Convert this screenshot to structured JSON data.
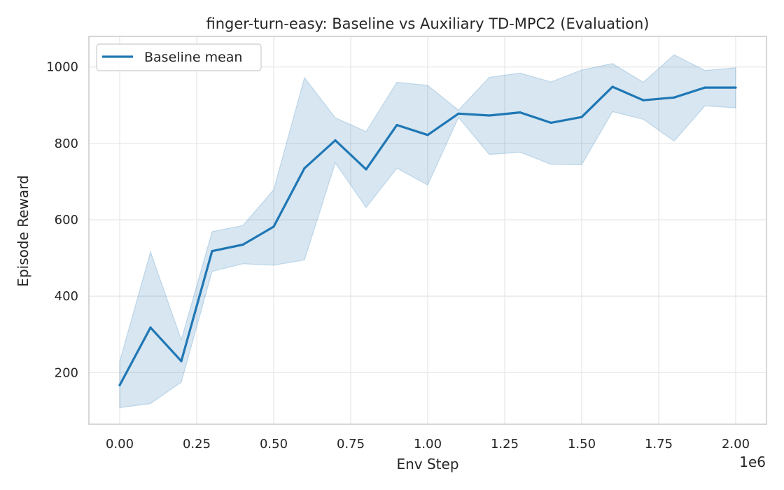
{
  "chart_data": {
    "type": "line",
    "title": "finger-turn-easy: Baseline vs Auxiliary TD-MPC2 (Evaluation)",
    "xlabel": "Env Step",
    "ylabel": "Episode Reward",
    "x_offset_label": "1e6",
    "xlim": [
      -0.1,
      2.1
    ],
    "ylim": [
      65,
      1080
    ],
    "xticks": [
      0.0,
      0.25,
      0.5,
      0.75,
      1.0,
      1.25,
      1.5,
      1.75,
      2.0
    ],
    "xtick_labels": [
      "0.00",
      "0.25",
      "0.50",
      "0.75",
      "1.00",
      "1.25",
      "1.50",
      "1.75",
      "2.00"
    ],
    "yticks": [
      200,
      400,
      600,
      800,
      1000
    ],
    "ytick_labels": [
      "200",
      "400",
      "600",
      "800",
      "1000"
    ],
    "grid": true,
    "legend_position": "top-left",
    "series": [
      {
        "name": "Baseline mean",
        "color": "#1f77b4",
        "x": [
          0.0,
          0.1,
          0.2,
          0.3,
          0.4,
          0.5,
          0.6,
          0.7,
          0.8,
          0.9,
          1.0,
          1.1,
          1.2,
          1.3,
          1.4,
          1.5,
          1.6,
          1.7,
          1.8,
          1.9,
          2.0
        ],
        "values": [
          167,
          318,
          230,
          518,
          535,
          582,
          735,
          808,
          732,
          848,
          822,
          878,
          873,
          881,
          854,
          869,
          948,
          913,
          920,
          946,
          946
        ],
        "lower": [
          108,
          119,
          175,
          465,
          485,
          481,
          495,
          749,
          632,
          735,
          691,
          868,
          771,
          777,
          745,
          744,
          883,
          863,
          806,
          898,
          893
        ],
        "upper": [
          229,
          516,
          286,
          569,
          585,
          679,
          972,
          867,
          831,
          960,
          952,
          887,
          973,
          984,
          961,
          992,
          1009,
          960,
          1032,
          991,
          998
        ]
      }
    ]
  }
}
